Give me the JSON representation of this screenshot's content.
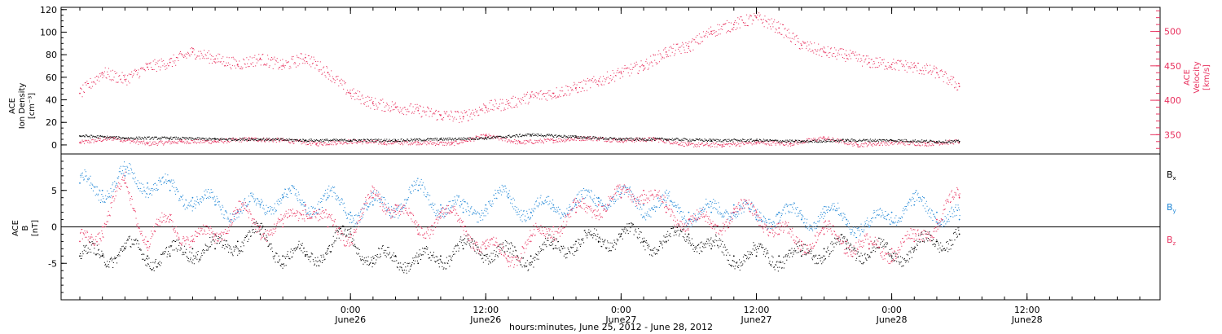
{
  "colors": {
    "black": "#000000",
    "blue": "#1f86d6",
    "pink": "#e8325f"
  },
  "chart_data": [
    {
      "type": "scatter",
      "panel": "plasma",
      "ylabel_left": [
        "ACE",
        "Ion Density",
        "[cm⁻³]"
      ],
      "ylabel_right": [
        "ACE",
        "Velocity",
        "[km/s]"
      ],
      "ylim_left": [
        -8,
        122
      ],
      "ylim_right": [
        322,
        535
      ],
      "yticks_left": [
        0,
        20,
        40,
        60,
        80,
        100,
        120
      ],
      "yticks_right": [
        350,
        400,
        450,
        500
      ],
      "series": [
        {
          "axis": "left",
          "color": "pink",
          "x_hours": [
            0,
            3,
            6,
            9,
            12,
            15,
            18,
            21,
            24,
            27,
            30,
            33,
            36,
            39,
            42,
            45,
            48,
            51,
            54,
            57,
            60,
            63,
            66,
            69,
            72,
            75,
            78
          ],
          "values": [
            2,
            6,
            1,
            3,
            3,
            5,
            4,
            1,
            3,
            2,
            2,
            1,
            8,
            2,
            4,
            6,
            4,
            5,
            0,
            0,
            2,
            1,
            6,
            0,
            2,
            1,
            3
          ]
        },
        {
          "axis": "right",
          "color": "pink",
          "x_hours": [
            0,
            2,
            4,
            6,
            8,
            10,
            12,
            14,
            16,
            18,
            20,
            22,
            24,
            26,
            28,
            30,
            32,
            34,
            36,
            38,
            40,
            42,
            44,
            46,
            48,
            50,
            52,
            54,
            56,
            58,
            60,
            62,
            64,
            66,
            68,
            70,
            72,
            74,
            76,
            78
          ],
          "values": [
            410,
            440,
            430,
            448,
            455,
            470,
            460,
            452,
            460,
            450,
            462,
            440,
            410,
            395,
            390,
            385,
            378,
            376,
            390,
            395,
            405,
            410,
            418,
            428,
            440,
            450,
            470,
            478,
            500,
            510,
            520,
            505,
            480,
            470,
            465,
            455,
            452,
            448,
            440,
            420
          ]
        },
        {
          "axis": "left",
          "color": "black",
          "x_hours": [
            0,
            4,
            8,
            12,
            16,
            20,
            24,
            28,
            32,
            36,
            40,
            44,
            48,
            52,
            56,
            60,
            64,
            68,
            72,
            76,
            78
          ],
          "values": [
            8,
            6,
            6,
            5,
            5,
            4,
            4,
            4,
            5,
            6,
            9,
            7,
            5,
            5,
            4,
            4,
            3,
            4,
            4,
            3,
            3
          ]
        }
      ]
    },
    {
      "type": "scatter",
      "panel": "magnetic",
      "ylabel_left": [
        "ACE",
        "B",
        "[nT]"
      ],
      "ylim": [
        -10,
        10
      ],
      "yticks": [
        -5,
        0,
        5
      ],
      "legend": [
        "Bx",
        "By",
        "Bz"
      ],
      "legend_placement": "right",
      "series": [
        {
          "name": "Bx",
          "color": "black",
          "x_hours": [
            0,
            2,
            4,
            6,
            8,
            10,
            12,
            14,
            16,
            18,
            20,
            22,
            24,
            26,
            28,
            30,
            32,
            34,
            36,
            38,
            40,
            42,
            44,
            46,
            48,
            50,
            52,
            54,
            56,
            58,
            60,
            62,
            64,
            66,
            68,
            70,
            72,
            74,
            76,
            78
          ],
          "values": [
            -4,
            -4,
            -3,
            -4,
            -4,
            -3,
            -3,
            -2,
            -1,
            -4,
            -4,
            -3,
            -1,
            -5,
            -4,
            -5,
            -4,
            -3,
            -3,
            -4,
            -4,
            -3,
            -2,
            -2,
            -1,
            -2,
            -2,
            -1,
            -3,
            -4,
            -4,
            -4,
            -4,
            -3,
            -3,
            -3,
            -4,
            -3,
            -2,
            -1
          ]
        },
        {
          "name": "By",
          "color": "blue",
          "x_hours": [
            0,
            2,
            4,
            6,
            8,
            10,
            12,
            14,
            16,
            18,
            20,
            22,
            24,
            26,
            28,
            30,
            32,
            34,
            36,
            38,
            40,
            42,
            44,
            46,
            48,
            50,
            52,
            54,
            56,
            58,
            60,
            62,
            64,
            66,
            68,
            70,
            72,
            74,
            76,
            78
          ],
          "values": [
            6,
            5,
            7,
            6,
            5,
            4,
            3,
            2,
            3,
            4,
            3,
            4,
            2,
            3,
            3,
            5,
            3,
            2,
            3,
            4,
            2,
            3,
            3,
            4,
            4,
            3,
            3,
            2,
            2,
            3,
            1,
            2,
            1,
            2,
            1,
            0,
            2,
            3,
            2,
            1
          ]
        },
        {
          "name": "Bz",
          "color": "pink",
          "x_hours": [
            0,
            2,
            4,
            6,
            8,
            10,
            12,
            14,
            16,
            18,
            20,
            22,
            24,
            26,
            28,
            30,
            32,
            34,
            36,
            38,
            40,
            42,
            44,
            46,
            48,
            50,
            52,
            54,
            56,
            58,
            60,
            62,
            64,
            66,
            68,
            70,
            72,
            74,
            76,
            78
          ],
          "values": [
            -2,
            0,
            6,
            -2,
            1,
            -2,
            -1,
            2,
            0,
            0,
            3,
            0,
            -1,
            4,
            3,
            -1,
            2,
            0,
            -3,
            -4,
            -2,
            0,
            2,
            3,
            4,
            5,
            2,
            1,
            0,
            2,
            2,
            -1,
            -2,
            -1,
            -2,
            -3,
            -3,
            -2,
            1,
            4
          ]
        }
      ]
    }
  ],
  "axis": {
    "x_ticks": [
      {
        "hour": 24,
        "time": "0:00",
        "date": "June26"
      },
      {
        "hour": 36,
        "time": "12:00",
        "date": "June26"
      },
      {
        "hour": 48,
        "time": "0:00",
        "date": "June27"
      },
      {
        "hour": 60,
        "time": "12:00",
        "date": "June27"
      },
      {
        "hour": 72,
        "time": "0:00",
        "date": "June28"
      },
      {
        "hour": 84,
        "time": "12:00",
        "date": "June28"
      }
    ],
    "xlabel": "hours:minutes, June 25, 2012 - June 28, 2012"
  }
}
